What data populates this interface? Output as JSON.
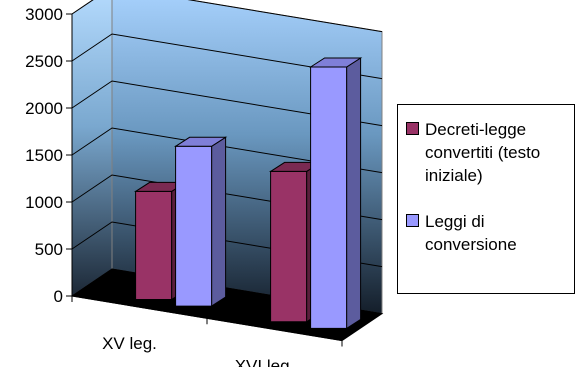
{
  "chart_data": {
    "type": "bar",
    "categories": [
      "XV leg.",
      "XVI leg."
    ],
    "series": [
      {
        "name": "Decreti-legge convertiti (testo iniziale)",
        "color": "#993366",
        "values": [
          1150,
          1600
        ]
      },
      {
        "name": "Leggi di conversione",
        "color": "#9999ff",
        "values": [
          1700,
          2780
        ]
      }
    ],
    "ylim": [
      0,
      3000
    ],
    "yticks": [
      "0",
      "500",
      "1000",
      "1500",
      "2000",
      "2500",
      "3000"
    ],
    "grid": true,
    "legend_position": "right",
    "three_d": true,
    "title": "",
    "xlabel": "",
    "ylabel": ""
  }
}
